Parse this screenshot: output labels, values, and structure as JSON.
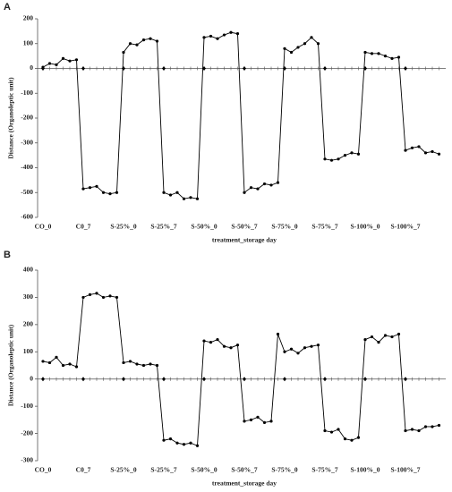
{
  "chart_data": [
    {
      "type": "line",
      "panel": "A",
      "x_label": "treatment_storage day",
      "y_label": "Distance (Organoleptic unit)",
      "categories": [
        "CO_0",
        null,
        null,
        null,
        null,
        null,
        "C0_7",
        null,
        null,
        null,
        null,
        null,
        "S-25%_0",
        null,
        null,
        null,
        null,
        null,
        "S-25%_7",
        null,
        null,
        null,
        null,
        null,
        "S-50%_0",
        null,
        null,
        null,
        null,
        null,
        "S-50%_7",
        null,
        null,
        null,
        null,
        null,
        "S-75%_0",
        null,
        null,
        null,
        null,
        null,
        "S-75%_7",
        null,
        null,
        null,
        null,
        null,
        "S-100%_0",
        null,
        null,
        null,
        null,
        null,
        "S-100%_7",
        null,
        null,
        null,
        null,
        null
      ],
      "values": [
        5,
        20,
        15,
        40,
        30,
        35,
        -485,
        -480,
        -475,
        -500,
        -505,
        -500,
        65,
        100,
        95,
        115,
        120,
        110,
        -500,
        -510,
        -500,
        -525,
        -520,
        -525,
        125,
        130,
        120,
        135,
        145,
        140,
        -500,
        -480,
        -485,
        -465,
        -470,
        -460,
        80,
        65,
        85,
        100,
        125,
        100,
        -365,
        -370,
        -365,
        -350,
        -340,
        -345,
        65,
        60,
        60,
        50,
        40,
        45,
        -330,
        -320,
        -315,
        -340,
        -335,
        -345
      ],
      "color": "#000000",
      "ylim": [
        -600,
        200
      ],
      "yticks": [
        -600,
        -500,
        -400,
        -300,
        -200,
        -100,
        0,
        100,
        200
      ],
      "grid": false
    },
    {
      "type": "line",
      "panel": "B",
      "x_label": "treatment_storage day",
      "y_label": "Distance (Organoleptic unit)",
      "categories": [
        "CO_0",
        null,
        null,
        null,
        null,
        null,
        "C0_7",
        null,
        null,
        null,
        null,
        null,
        "S-25%_0",
        null,
        null,
        null,
        null,
        null,
        "S-25%_7",
        null,
        null,
        null,
        null,
        null,
        "S-50%_0",
        null,
        null,
        null,
        null,
        null,
        "S-50%_7",
        null,
        null,
        null,
        null,
        null,
        "S-75%_0",
        null,
        null,
        null,
        null,
        null,
        "S-75%_7",
        null,
        null,
        null,
        null,
        null,
        "S-100%_0",
        null,
        null,
        null,
        null,
        null,
        "S-100%_7",
        null,
        null,
        null,
        null,
        null
      ],
      "values": [
        65,
        60,
        80,
        50,
        55,
        45,
        300,
        310,
        315,
        300,
        305,
        300,
        60,
        65,
        55,
        50,
        55,
        50,
        -225,
        -220,
        -235,
        -240,
        -235,
        -245,
        140,
        135,
        145,
        120,
        115,
        125,
        -155,
        -150,
        -140,
        -160,
        -155,
        165,
        100,
        110,
        95,
        115,
        120,
        125,
        -190,
        -195,
        -185,
        -220,
        -225,
        -215,
        145,
        155,
        135,
        160,
        155,
        165,
        -190,
        -185,
        -190,
        -175,
        -175,
        -170
      ],
      "color": "#000000",
      "ylim": [
        -300,
        400
      ],
      "yticks": [
        -300,
        -200,
        -100,
        0,
        100,
        200,
        300,
        400
      ],
      "grid": false
    }
  ]
}
